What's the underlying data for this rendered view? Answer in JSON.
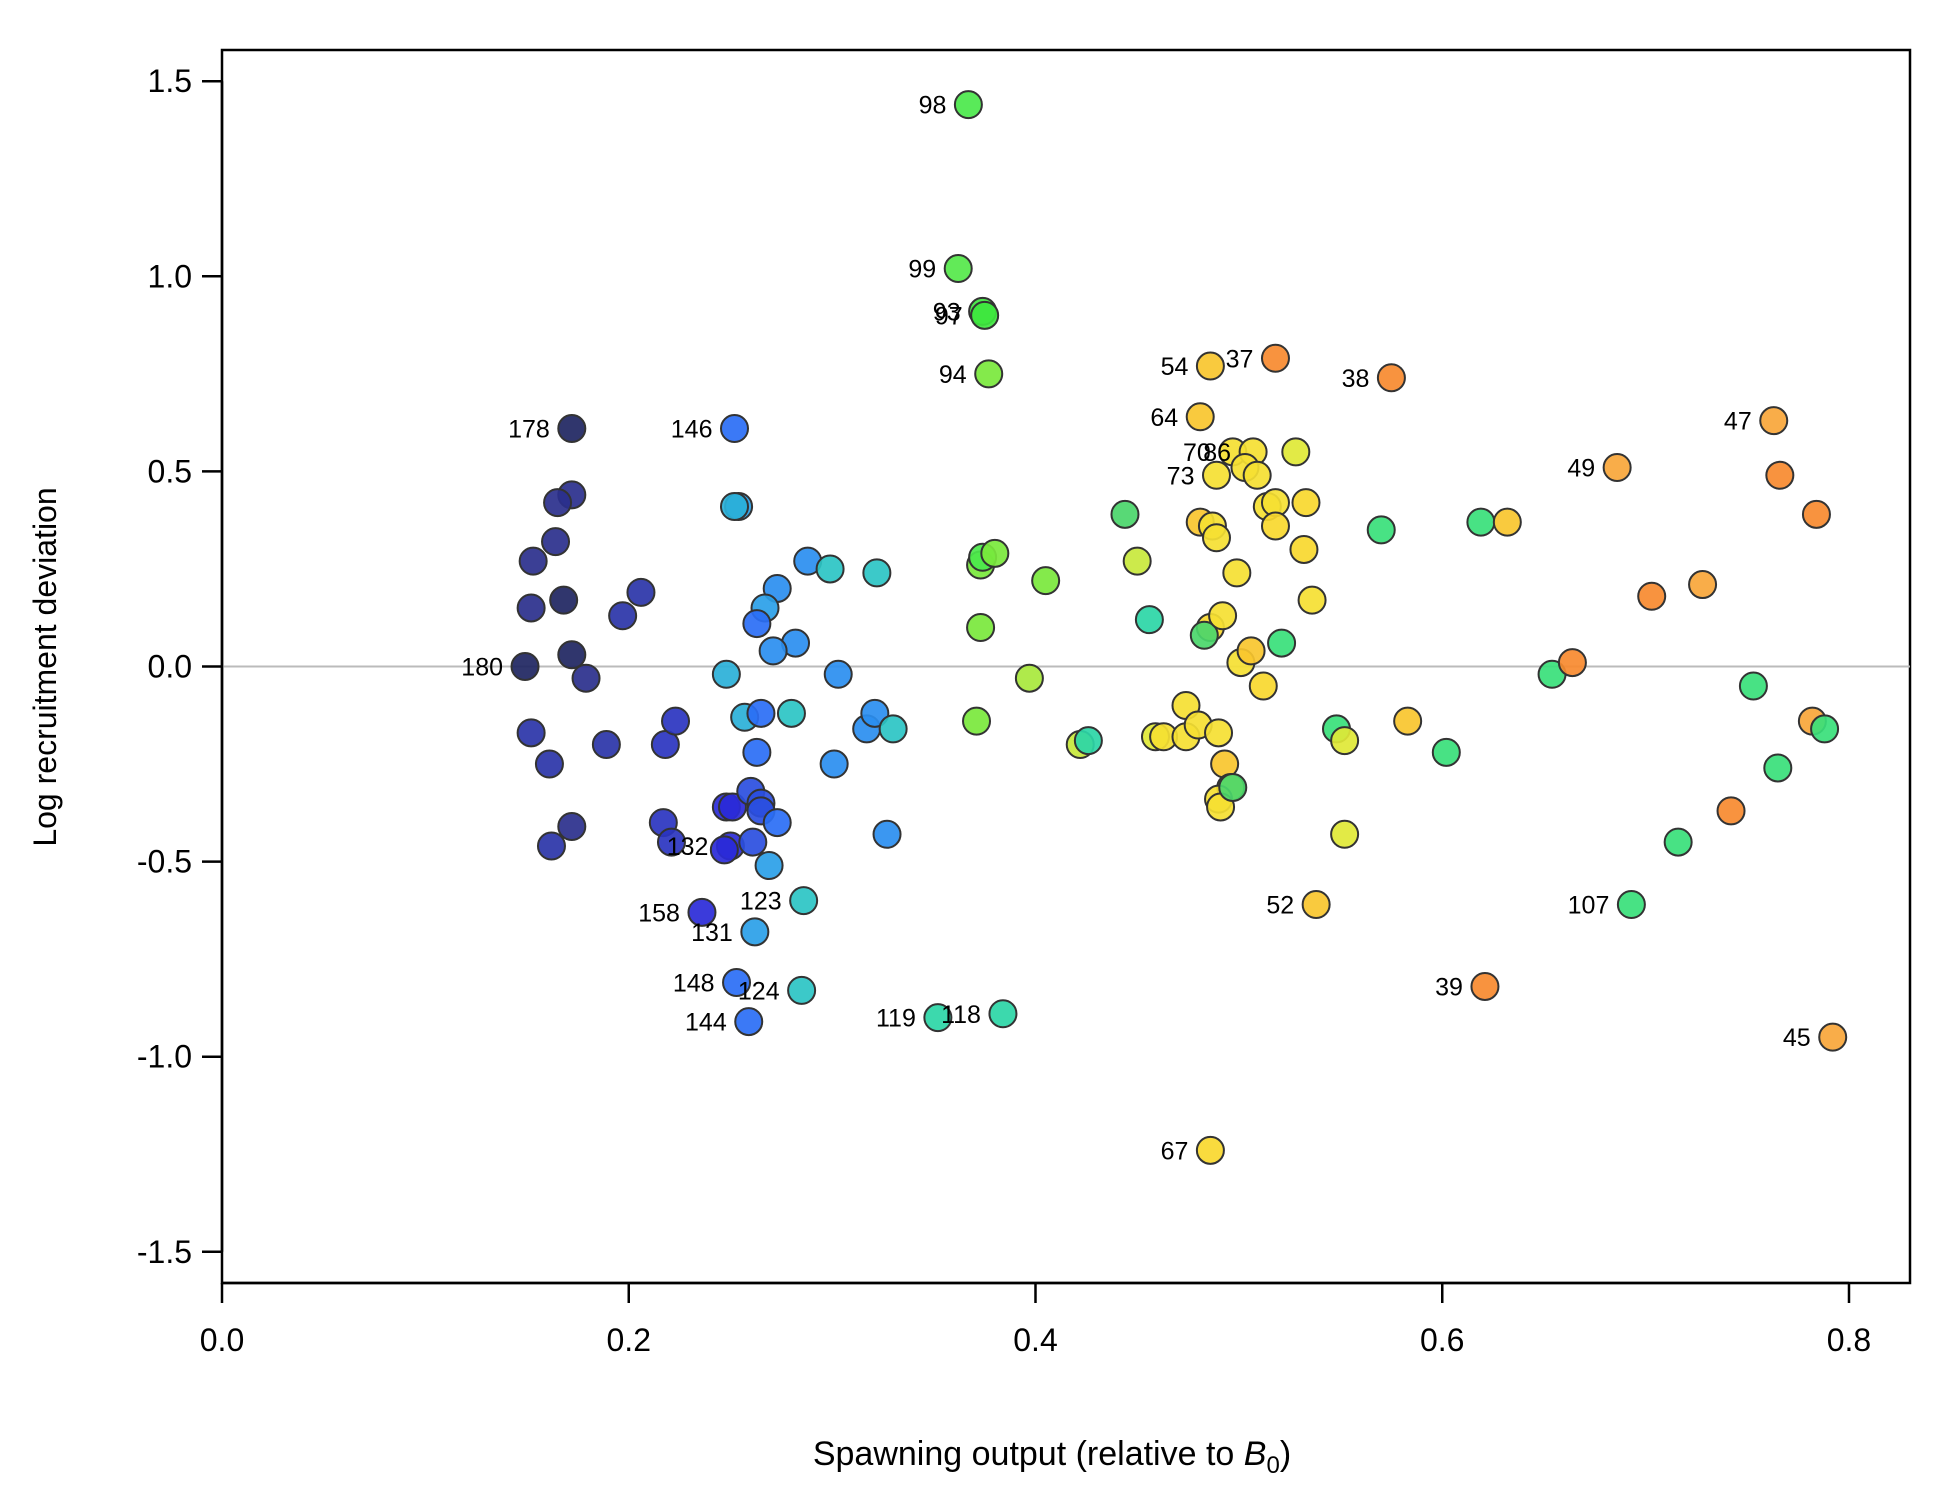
{
  "chart_data": {
    "type": "scatter",
    "xlabel": "Spawning output (relative to B0)",
    "xlabel_main": "Spawning output (relative to ",
    "xlabel_symbol": "B",
    "xlabel_subscript": "0",
    "xlabel_close": ")",
    "ylabel": "Log recruitment deviation",
    "xlim": [
      0.0,
      0.83
    ],
    "ylim": [
      -1.58,
      1.58
    ],
    "x_ticks": [
      0.0,
      0.2,
      0.4,
      0.6,
      0.8
    ],
    "x_tick_labels": [
      "0.0",
      "0.2",
      "0.4",
      "0.6",
      "0.8"
    ],
    "y_ticks": [
      1.5,
      1.0,
      0.5,
      0.0,
      -0.5,
      -1.0,
      -1.5
    ],
    "y_tick_labels": [
      "1.5",
      "1.0",
      "0.5",
      "0.0",
      "-0.5",
      "-1.0",
      "-1.5"
    ],
    "reference_line_y": 0.0,
    "reference_line_color": "#bbbbbb",
    "grid": false,
    "legend": "none",
    "color_scale": "index-based rainbow: orange (early) → yellow → green → blue → dark navy (late)",
    "points": [
      {
        "x": 0.367,
        "y": 1.44,
        "color": "#4be84b",
        "label": "98"
      },
      {
        "x": 0.362,
        "y": 1.02,
        "color": "#55e84a",
        "label": "99"
      },
      {
        "x": 0.374,
        "y": 0.91,
        "color": "#3ee63e",
        "label": "93"
      },
      {
        "x": 0.375,
        "y": 0.9,
        "color": "#3ee63e",
        "label": "97"
      },
      {
        "x": 0.377,
        "y": 0.75,
        "color": "#7ae83c",
        "label": "94"
      },
      {
        "x": 0.486,
        "y": 0.77,
        "color": "#f9c52e",
        "label": "54"
      },
      {
        "x": 0.518,
        "y": 0.79,
        "color": "#f78a2f",
        "label": "37"
      },
      {
        "x": 0.575,
        "y": 0.74,
        "color": "#f78a2f",
        "label": "38"
      },
      {
        "x": 0.481,
        "y": 0.64,
        "color": "#f9c52e",
        "label": "64"
      },
      {
        "x": 0.763,
        "y": 0.63,
        "color": "#f9a63a",
        "label": "47"
      },
      {
        "x": 0.686,
        "y": 0.51,
        "color": "#f9a63a",
        "label": "49"
      },
      {
        "x": 0.172,
        "y": 0.61,
        "color": "#1e2561",
        "label": "178"
      },
      {
        "x": 0.252,
        "y": 0.61,
        "color": "#2a6ef5",
        "label": "146"
      },
      {
        "x": 0.497,
        "y": 0.55,
        "color": "#f5e032",
        "label": "70"
      },
      {
        "x": 0.507,
        "y": 0.55,
        "color": "#f5e032",
        "label": "86"
      },
      {
        "x": 0.489,
        "y": 0.49,
        "color": "#f5e032",
        "label": "73"
      },
      {
        "x": 0.149,
        "y": 0.0,
        "color": "#1e2561",
        "label": "180"
      },
      {
        "x": 0.25,
        "y": -0.46,
        "color": "#2a2ad8",
        "label": "132"
      },
      {
        "x": 0.286,
        "y": -0.6,
        "color": "#2bc4c4",
        "label": "123"
      },
      {
        "x": 0.236,
        "y": -0.63,
        "color": "#2a2ad8",
        "label": "158"
      },
      {
        "x": 0.262,
        "y": -0.68,
        "color": "#2aa0e8",
        "label": "131"
      },
      {
        "x": 0.253,
        "y": -0.81,
        "color": "#2a6ef5",
        "label": "148"
      },
      {
        "x": 0.285,
        "y": -0.83,
        "color": "#2bc4c4",
        "label": "124"
      },
      {
        "x": 0.259,
        "y": -0.91,
        "color": "#2a6ef5",
        "label": "144"
      },
      {
        "x": 0.352,
        "y": -0.9,
        "color": "#2bd6a6",
        "label": "119"
      },
      {
        "x": 0.384,
        "y": -0.89,
        "color": "#2bd6a6",
        "label": "118"
      },
      {
        "x": 0.538,
        "y": -0.61,
        "color": "#f9c52e",
        "label": "52"
      },
      {
        "x": 0.693,
        "y": -0.61,
        "color": "#38e07a",
        "label": "107"
      },
      {
        "x": 0.621,
        "y": -0.82,
        "color": "#f78a2f",
        "label": "39"
      },
      {
        "x": 0.792,
        "y": -0.95,
        "color": "#f9a63a",
        "label": "45"
      },
      {
        "x": 0.486,
        "y": -1.24,
        "color": "#f9d82e",
        "label": "67"
      },
      {
        "x": 0.172,
        "y": 0.44,
        "color": "#2a2f8c"
      },
      {
        "x": 0.165,
        "y": 0.42,
        "color": "#2a2f8c"
      },
      {
        "x": 0.164,
        "y": 0.32,
        "color": "#2a2f8c"
      },
      {
        "x": 0.153,
        "y": 0.27,
        "color": "#2a2f8c"
      },
      {
        "x": 0.168,
        "y": 0.17,
        "color": "#1e2561"
      },
      {
        "x": 0.152,
        "y": 0.15,
        "color": "#2a2f8c"
      },
      {
        "x": 0.197,
        "y": 0.13,
        "color": "#2a34a8"
      },
      {
        "x": 0.206,
        "y": 0.19,
        "color": "#2a34a8"
      },
      {
        "x": 0.172,
        "y": 0.03,
        "color": "#1e2561"
      },
      {
        "x": 0.179,
        "y": -0.03,
        "color": "#2a2f8c"
      },
      {
        "x": 0.152,
        "y": -0.17,
        "color": "#2a34a8"
      },
      {
        "x": 0.161,
        "y": -0.25,
        "color": "#2a34a8"
      },
      {
        "x": 0.189,
        "y": -0.2,
        "color": "#2a34a8"
      },
      {
        "x": 0.172,
        "y": -0.41,
        "color": "#2a2f8c"
      },
      {
        "x": 0.162,
        "y": -0.46,
        "color": "#2a34a8"
      },
      {
        "x": 0.218,
        "y": -0.2,
        "color": "#2a34c0"
      },
      {
        "x": 0.223,
        "y": -0.14,
        "color": "#2a34c0"
      },
      {
        "x": 0.217,
        "y": -0.4,
        "color": "#2a34c0"
      },
      {
        "x": 0.221,
        "y": -0.45,
        "color": "#2a34c0"
      },
      {
        "x": 0.248,
        "y": -0.36,
        "color": "#2a2ad8"
      },
      {
        "x": 0.251,
        "y": -0.36,
        "color": "#2a2ad8"
      },
      {
        "x": 0.247,
        "y": -0.47,
        "color": "#2a2ad8"
      },
      {
        "x": 0.26,
        "y": -0.32,
        "color": "#2a4ee0"
      },
      {
        "x": 0.265,
        "y": -0.35,
        "color": "#2a4ee0"
      },
      {
        "x": 0.265,
        "y": -0.37,
        "color": "#2a4ee0"
      },
      {
        "x": 0.261,
        "y": -0.45,
        "color": "#2a4ee0"
      },
      {
        "x": 0.273,
        "y": -0.4,
        "color": "#2a6ef5"
      },
      {
        "x": 0.269,
        "y": -0.51,
        "color": "#2aa0e8"
      },
      {
        "x": 0.254,
        "y": 0.41,
        "color": "#2aa0e8"
      },
      {
        "x": 0.252,
        "y": 0.41,
        "color": "#2ab0d8"
      },
      {
        "x": 0.288,
        "y": 0.27,
        "color": "#2a8ef0"
      },
      {
        "x": 0.299,
        "y": 0.25,
        "color": "#2bc4c4"
      },
      {
        "x": 0.322,
        "y": 0.24,
        "color": "#2bc4c4"
      },
      {
        "x": 0.273,
        "y": 0.2,
        "color": "#2a8ef0"
      },
      {
        "x": 0.267,
        "y": 0.15,
        "color": "#2aa0e8"
      },
      {
        "x": 0.263,
        "y": 0.11,
        "color": "#2a6ef5"
      },
      {
        "x": 0.282,
        "y": 0.06,
        "color": "#2a8ef0"
      },
      {
        "x": 0.271,
        "y": 0.04,
        "color": "#2a8ef0"
      },
      {
        "x": 0.248,
        "y": -0.02,
        "color": "#2ab0d8"
      },
      {
        "x": 0.303,
        "y": -0.02,
        "color": "#2a8ef0"
      },
      {
        "x": 0.257,
        "y": -0.13,
        "color": "#2ab0d8"
      },
      {
        "x": 0.265,
        "y": -0.12,
        "color": "#2a6ef5"
      },
      {
        "x": 0.28,
        "y": -0.12,
        "color": "#2bc4c4"
      },
      {
        "x": 0.263,
        "y": -0.22,
        "color": "#2a6ef5"
      },
      {
        "x": 0.301,
        "y": -0.25,
        "color": "#2a8ef0"
      },
      {
        "x": 0.317,
        "y": -0.16,
        "color": "#2a8ef0"
      },
      {
        "x": 0.321,
        "y": -0.12,
        "color": "#2a8ef0"
      },
      {
        "x": 0.33,
        "y": -0.16,
        "color": "#2bc4c4"
      },
      {
        "x": 0.327,
        "y": -0.43,
        "color": "#2a8ef0"
      },
      {
        "x": 0.373,
        "y": 0.26,
        "color": "#7ae83c"
      },
      {
        "x": 0.374,
        "y": 0.28,
        "color": "#4be84b"
      },
      {
        "x": 0.38,
        "y": 0.29,
        "color": "#7ae83c"
      },
      {
        "x": 0.373,
        "y": 0.1,
        "color": "#7ae83c"
      },
      {
        "x": 0.371,
        "y": -0.14,
        "color": "#7ae83c"
      },
      {
        "x": 0.405,
        "y": 0.22,
        "color": "#7ae83c"
      },
      {
        "x": 0.397,
        "y": -0.03,
        "color": "#a8e83c"
      },
      {
        "x": 0.422,
        "y": -0.2,
        "color": "#c8e83c"
      },
      {
        "x": 0.426,
        "y": -0.19,
        "color": "#2bd6a6"
      },
      {
        "x": 0.444,
        "y": 0.39,
        "color": "#4ad66a"
      },
      {
        "x": 0.45,
        "y": 0.27,
        "color": "#c8e83c"
      },
      {
        "x": 0.456,
        "y": 0.12,
        "color": "#2bd6a6"
      },
      {
        "x": 0.459,
        "y": -0.18,
        "color": "#e0e836"
      },
      {
        "x": 0.463,
        "y": -0.18,
        "color": "#f5e032"
      },
      {
        "x": 0.474,
        "y": -0.1,
        "color": "#f5e032"
      },
      {
        "x": 0.474,
        "y": -0.18,
        "color": "#f5e032"
      },
      {
        "x": 0.48,
        "y": -0.15,
        "color": "#f5e032"
      },
      {
        "x": 0.481,
        "y": 0.37,
        "color": "#f9c52e"
      },
      {
        "x": 0.487,
        "y": 0.36,
        "color": "#f5e032"
      },
      {
        "x": 0.489,
        "y": 0.33,
        "color": "#f5e032"
      },
      {
        "x": 0.486,
        "y": 0.1,
        "color": "#f9d82e"
      },
      {
        "x": 0.483,
        "y": 0.08,
        "color": "#4ad66a"
      },
      {
        "x": 0.492,
        "y": 0.13,
        "color": "#f5e032"
      },
      {
        "x": 0.499,
        "y": 0.24,
        "color": "#f5e032"
      },
      {
        "x": 0.501,
        "y": 0.01,
        "color": "#f5e032"
      },
      {
        "x": 0.506,
        "y": 0.04,
        "color": "#f9c52e"
      },
      {
        "x": 0.49,
        "y": -0.17,
        "color": "#f5e032"
      },
      {
        "x": 0.493,
        "y": -0.25,
        "color": "#f9c52e"
      },
      {
        "x": 0.496,
        "y": -0.31,
        "color": "#f5e032"
      },
      {
        "x": 0.49,
        "y": -0.34,
        "color": "#f5e032"
      },
      {
        "x": 0.491,
        "y": -0.36,
        "color": "#f5e032"
      },
      {
        "x": 0.497,
        "y": -0.31,
        "color": "#4ad66a"
      },
      {
        "x": 0.503,
        "y": 0.51,
        "color": "#f5e032"
      },
      {
        "x": 0.509,
        "y": 0.49,
        "color": "#f5e032"
      },
      {
        "x": 0.514,
        "y": 0.41,
        "color": "#f5e032"
      },
      {
        "x": 0.518,
        "y": 0.42,
        "color": "#f5e032"
      },
      {
        "x": 0.518,
        "y": 0.36,
        "color": "#f9d82e"
      },
      {
        "x": 0.512,
        "y": -0.05,
        "color": "#f9d82e"
      },
      {
        "x": 0.521,
        "y": 0.06,
        "color": "#38e07a"
      },
      {
        "x": 0.528,
        "y": 0.55,
        "color": "#e0e836"
      },
      {
        "x": 0.533,
        "y": 0.42,
        "color": "#f9d82e"
      },
      {
        "x": 0.532,
        "y": 0.3,
        "color": "#f9d82e"
      },
      {
        "x": 0.536,
        "y": 0.17,
        "color": "#f5e032"
      },
      {
        "x": 0.548,
        "y": -0.16,
        "color": "#38e07a"
      },
      {
        "x": 0.552,
        "y": -0.19,
        "color": "#e0e836"
      },
      {
        "x": 0.552,
        "y": -0.43,
        "color": "#e0e836"
      },
      {
        "x": 0.57,
        "y": 0.35,
        "color": "#38e07a"
      },
      {
        "x": 0.583,
        "y": -0.14,
        "color": "#f9c52e"
      },
      {
        "x": 0.602,
        "y": -0.22,
        "color": "#38e07a"
      },
      {
        "x": 0.619,
        "y": 0.37,
        "color": "#38e07a"
      },
      {
        "x": 0.632,
        "y": 0.37,
        "color": "#f9c52e"
      },
      {
        "x": 0.654,
        "y": -0.02,
        "color": "#38e07a"
      },
      {
        "x": 0.664,
        "y": 0.01,
        "color": "#f78a2f"
      },
      {
        "x": 0.703,
        "y": 0.18,
        "color": "#f78a2f"
      },
      {
        "x": 0.728,
        "y": 0.21,
        "color": "#f9a63a"
      },
      {
        "x": 0.716,
        "y": -0.45,
        "color": "#38e07a"
      },
      {
        "x": 0.742,
        "y": -0.37,
        "color": "#f78a2f"
      },
      {
        "x": 0.753,
        "y": -0.05,
        "color": "#38e07a"
      },
      {
        "x": 0.766,
        "y": 0.49,
        "color": "#f78a2f"
      },
      {
        "x": 0.765,
        "y": -0.26,
        "color": "#38e07a"
      },
      {
        "x": 0.782,
        "y": -0.14,
        "color": "#f9a63a"
      },
      {
        "x": 0.784,
        "y": 0.39,
        "color": "#f78a2f"
      },
      {
        "x": 0.788,
        "y": -0.16,
        "color": "#38e07a"
      }
    ]
  }
}
